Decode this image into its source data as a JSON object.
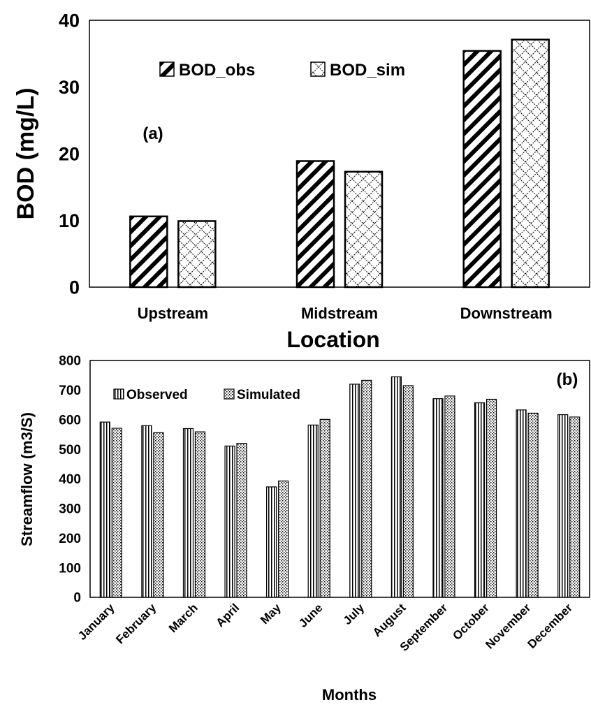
{
  "chart_data": [
    {
      "type": "bar",
      "panel_label": "(a)",
      "categories": [
        "Upstream",
        "Midstream",
        "Downstream"
      ],
      "series": [
        {
          "name": "BOD_obs",
          "values": [
            10.6,
            18.9,
            35.4
          ],
          "pattern": "diagonal-stripes"
        },
        {
          "name": "BOD_sim",
          "values": [
            9.9,
            17.3,
            37.1
          ],
          "pattern": "diamond-lattice"
        }
      ],
      "xlabel": "Location",
      "ylabel": "BOD (mg/L)",
      "ylim": [
        0,
        40
      ],
      "yticks": [
        0,
        10,
        20,
        30,
        40
      ],
      "grid": false,
      "legend_position": "top-center"
    },
    {
      "type": "bar",
      "panel_label": "(b)",
      "categories": [
        "January",
        "February",
        "March",
        "April",
        "May",
        "June",
        "July",
        "August",
        "September",
        "October",
        "November",
        "December"
      ],
      "series": [
        {
          "name": "Observed",
          "values": [
            592,
            580,
            570,
            511,
            373,
            582,
            720,
            745,
            671,
            657,
            633,
            617
          ],
          "pattern": "vertical-stripes"
        },
        {
          "name": "Simulated",
          "values": [
            571,
            556,
            559,
            520,
            393,
            601,
            733,
            715,
            680,
            669,
            622,
            609
          ],
          "pattern": "dots"
        }
      ],
      "xlabel": "Months",
      "ylabel": "Streamflow (m3/S)",
      "ylim": [
        0,
        800
      ],
      "yticks": [
        0,
        100,
        200,
        300,
        400,
        500,
        600,
        700,
        800
      ],
      "grid": false,
      "legend_position": "top-left"
    }
  ]
}
